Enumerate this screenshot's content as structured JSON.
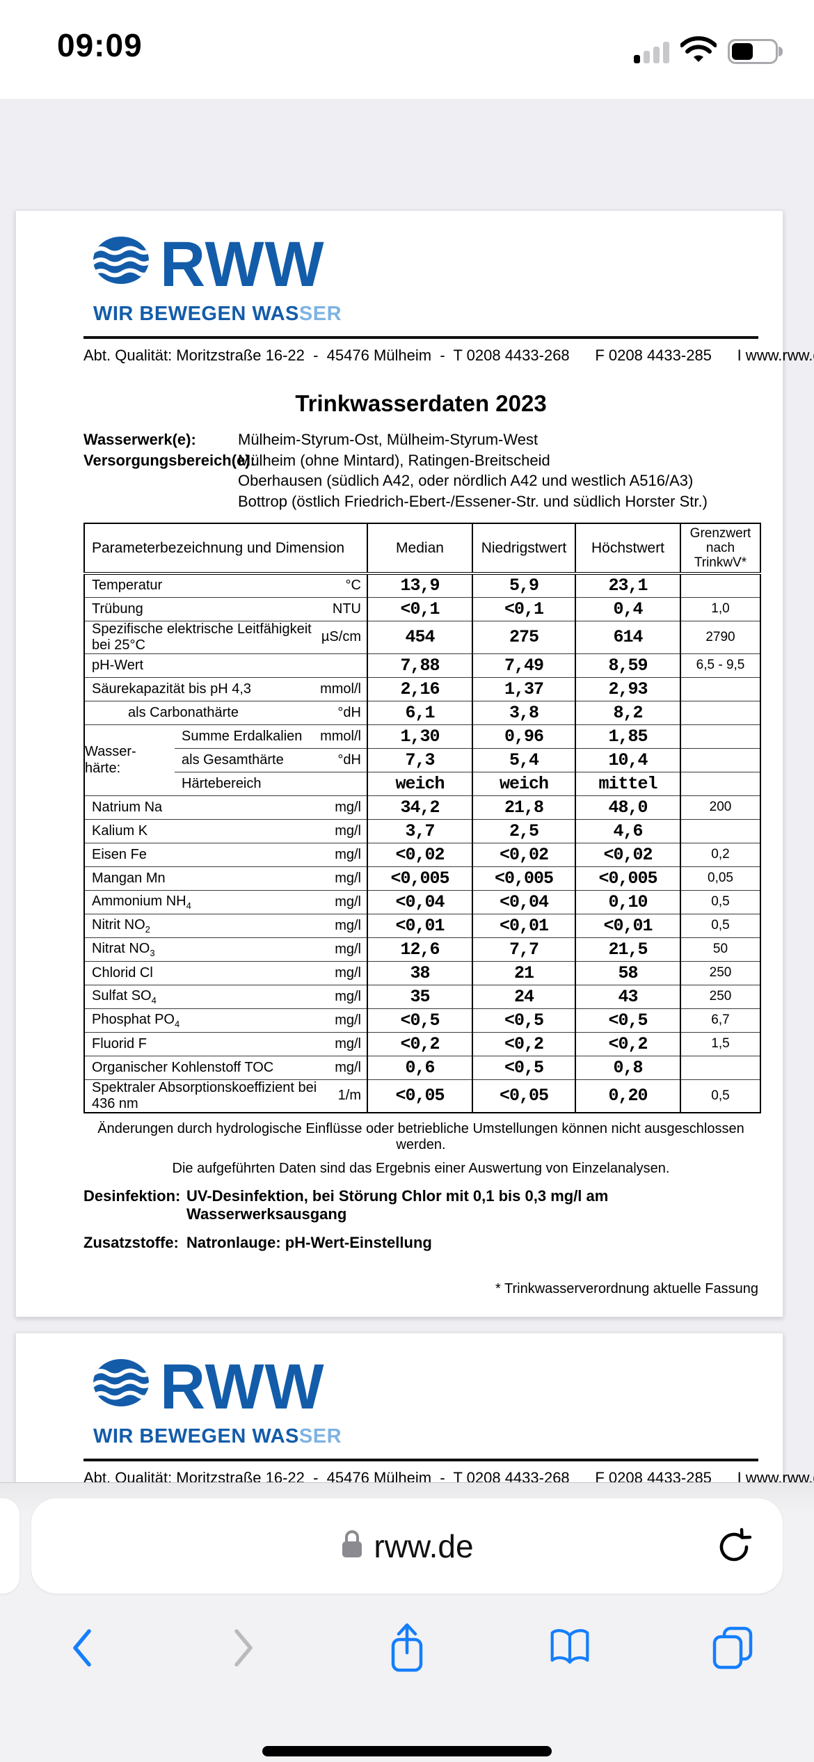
{
  "status_bar": {
    "time": "09:09"
  },
  "brand": {
    "logo_text": "RWW",
    "tagline_dark": "WIR BEWEGEN WAS",
    "tagline_light": "SER",
    "blue": "#135CA9",
    "light_blue": "#7EB3E3",
    "address_line": "Abt. Qualität: Moritzstraße 16-22  -  45476 Mülheim  -  T 0208 4433-268      F 0208 4433-285      I www.rww.de"
  },
  "document": {
    "title": "Trinkwasserdaten 2023",
    "info": [
      {
        "label": "Wasserwerk(e):",
        "lines": [
          "Mülheim-Styrum-Ost, Mülheim-Styrum-West"
        ]
      },
      {
        "label": "Versorgungsbereich(e):",
        "lines": [
          "Mülheim (ohne Mintard), Ratingen-Breitscheid",
          "Oberhausen (südlich A42, oder nördlich A42 und westlich A516/A3)",
          "Bottrop (östlich Friedrich-Ebert-/Essener-Str. und südlich Horster Str.)"
        ]
      }
    ],
    "table": {
      "header_param": "Parameterbezeichnung und Dimension",
      "header_median": "Median",
      "header_low": "Niedrigstwert",
      "header_high": "Höchstwert",
      "header_limit": "Grenzwert\nnach\nTrinkwV*",
      "rows": [
        {
          "n": "Temperatur",
          "u": "°C",
          "m": "13,9",
          "l": "5,9",
          "h": "23,1",
          "lim": ""
        },
        {
          "n": "Trübung",
          "u": "NTU",
          "m": "<0,1",
          "l": "<0,1",
          "h": "0,4",
          "lim": "1,0"
        },
        {
          "n": "Spezifische elektrische Leitfähigkeit bei 25°C",
          "u": "µS/cm",
          "m": "454",
          "l": "275",
          "h": "614",
          "lim": "2790"
        },
        {
          "n": "pH-Wert",
          "u": "",
          "m": "7,88",
          "l": "7,49",
          "h": "8,59",
          "lim": "6,5 - 9,5"
        },
        {
          "n": "Säurekapazität bis pH 4,3",
          "u": "mmol/l",
          "m": "2,16",
          "l": "1,37",
          "h": "2,93",
          "lim": ""
        },
        {
          "n": "als Carbonathärte",
          "u": "°dH",
          "m": "6,1",
          "l": "3,8",
          "h": "8,2",
          "lim": "",
          "ind": true,
          "nps": true
        },
        {
          "group": "Wasser-\nhärte:",
          "span": 3,
          "n": "Summe Erdalkalien",
          "u": "mmol/l",
          "m": "1,30",
          "l": "0,96",
          "h": "1,85",
          "lim": ""
        },
        {
          "ig": true,
          "n": "als Gesamthärte",
          "u": "°dH",
          "m": "7,3",
          "l": "5,4",
          "h": "10,4",
          "lim": "",
          "nps": true
        },
        {
          "ig": true,
          "n": "Härtebereich",
          "u": "",
          "m": "weich",
          "l": "weich",
          "h": "mittel",
          "lim": "",
          "nps": true
        },
        {
          "n": "Natrium Na",
          "u": "mg/l",
          "m": "34,2",
          "l": "21,8",
          "h": "48,0",
          "lim": "200"
        },
        {
          "n": "Kalium K",
          "u": "mg/l",
          "m": "3,7",
          "l": "2,5",
          "h": "4,6",
          "lim": ""
        },
        {
          "n": "Eisen Fe",
          "u": "mg/l",
          "m": "<0,02",
          "l": "<0,02",
          "h": "<0,02",
          "lim": "0,2"
        },
        {
          "n": "Mangan Mn",
          "u": "mg/l",
          "m": "<0,005",
          "l": "<0,005",
          "h": "<0,005",
          "lim": "0,05"
        },
        {
          "n": "Ammonium NH",
          "sub": "4",
          "u": "mg/l",
          "m": "<0,04",
          "l": "<0,04",
          "h": "0,10",
          "lim": "0,5"
        },
        {
          "n": "Nitrit NO",
          "sub": "2",
          "u": "mg/l",
          "m": "<0,01",
          "l": "<0,01",
          "h": "<0,01",
          "lim": "0,5"
        },
        {
          "n": "Nitrat NO",
          "sub": "3",
          "u": "mg/l",
          "m": "12,6",
          "l": "7,7",
          "h": "21,5",
          "lim": "50"
        },
        {
          "n": "Chlorid Cl",
          "u": "mg/l",
          "m": "38",
          "l": "21",
          "h": "58",
          "lim": "250"
        },
        {
          "n": "Sulfat SO",
          "sub": "4",
          "u": "mg/l",
          "m": "35",
          "l": "24",
          "h": "43",
          "lim": "250"
        },
        {
          "n": "Phosphat PO",
          "sub": "4",
          "u": "mg/l",
          "m": "<0,5",
          "l": "<0,5",
          "h": "<0,5",
          "lim": "6,7"
        },
        {
          "n": "Fluorid F",
          "u": "mg/l",
          "m": "<0,2",
          "l": "<0,2",
          "h": "<0,2",
          "lim": "1,5"
        },
        {
          "n": "Organischer Kohlenstoff TOC",
          "u": "mg/l",
          "m": "0,6",
          "l": "<0,5",
          "h": "0,8",
          "lim": ""
        },
        {
          "n": "Spektraler Absorptionskoeffizient bei 436 nm",
          "u": "1/m",
          "m": "<0,05",
          "l": "<0,05",
          "h": "0,20",
          "lim": "0,5"
        }
      ]
    },
    "notes": [
      "Änderungen durch hydrologische Einflüsse oder betriebliche Umstellungen können nicht ausgeschlossen werden.",
      "Die aufgeführten Daten sind das Ergebnis einer Auswertung von Einzelanalysen."
    ],
    "disinfection_label": "Desinfektion:",
    "disinfection_text": "UV-Desinfektion, bei Störung Chlor mit 0,1 bis 0,3 mg/l am Wasserwerksausgang",
    "additives_label": "Zusatzstoffe:",
    "additives_text": "Natronlauge: pH-Wert-Einstellung",
    "footnote": "* Trinkwasserverordnung aktuelle Fassung"
  },
  "browser": {
    "url": "rww.de",
    "lock_icon": "lock-icon",
    "reload_icon": "reload-icon",
    "toolbar": [
      "back",
      "forward",
      "share",
      "bookmarks",
      "tabs"
    ],
    "accent_blue": "#157EFB",
    "disabled_gray": "#B9B9BE"
  }
}
